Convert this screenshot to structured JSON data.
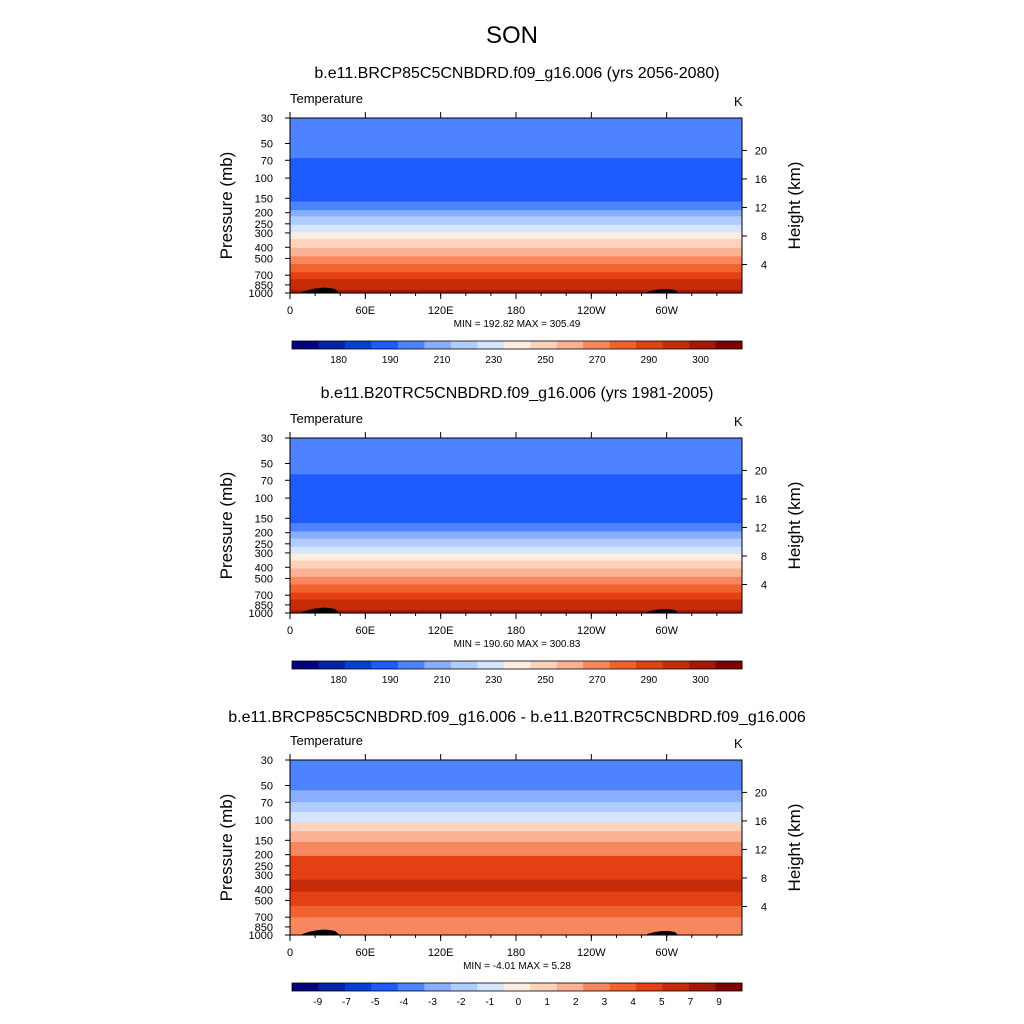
{
  "figure": {
    "title": "SON"
  },
  "colormaps": {
    "abs": [
      "#02007f",
      "#0023a8",
      "#0043d4",
      "#1e5bff",
      "#4e83ff",
      "#89aefd",
      "#b1ccff",
      "#d3e5ff",
      "#feeee1",
      "#fed2bb",
      "#fbb194",
      "#f6875f",
      "#f1632e",
      "#e34114",
      "#c62b0a",
      "#a41709",
      "#7f0000"
    ],
    "diff": [
      "#02007f",
      "#0023a8",
      "#0043d4",
      "#1e5bff",
      "#4e83ff",
      "#89aefd",
      "#b1ccff",
      "#d3e5ff",
      "#feeee1",
      "#fed2bb",
      "#fbb194",
      "#f6875f",
      "#f1632e",
      "#e34114",
      "#c62b0a",
      "#a41709",
      "#7f0000"
    ]
  },
  "chart_data": [
    {
      "type": "heatmap",
      "title": "b.e11.BRCP85C5CNBDRD.f09_g16.006 (yrs 2056-2080)",
      "left_label": "Temperature",
      "units": "K",
      "ylabel": "Pressure (mb)",
      "y2label": "Height (km)",
      "yticks": [
        "30",
        "50",
        "70",
        "100",
        "150",
        "200",
        "250",
        "300",
        "400",
        "500",
        "700",
        "850",
        "1000"
      ],
      "ytick_values": [
        30,
        50,
        70,
        100,
        150,
        200,
        250,
        300,
        400,
        500,
        700,
        850,
        1000
      ],
      "y2ticks": [
        "20",
        "16",
        "12",
        "8",
        "4"
      ],
      "y2tick_values": [
        20,
        16,
        12,
        8,
        4
      ],
      "xticks": [
        "0",
        "60E",
        "120E",
        "180",
        "120W",
        "60W"
      ],
      "xtick_values": [
        0,
        60,
        120,
        180,
        240,
        300
      ],
      "xlim": [
        0,
        360
      ],
      "ylim": [
        1000,
        30
      ],
      "stats": "MIN = 192.82  MAX = 305.49",
      "colorbar_labels": [
        "180",
        "190",
        "210",
        "230",
        "250",
        "270",
        "290",
        "300"
      ],
      "levels": [
        {
          "p": 30,
          "value": 205
        },
        {
          "p": 50,
          "value": 205
        },
        {
          "p": 70,
          "value": 198
        },
        {
          "p": 100,
          "value": 198
        },
        {
          "p": 150,
          "value": 208
        },
        {
          "p": 200,
          "value": 222
        },
        {
          "p": 250,
          "value": 232
        },
        {
          "p": 300,
          "value": 242
        },
        {
          "p": 400,
          "value": 255
        },
        {
          "p": 500,
          "value": 265
        },
        {
          "p": 700,
          "value": 280
        },
        {
          "p": 850,
          "value": 290
        },
        {
          "p": 1000,
          "value": 298
        }
      ],
      "colorband_boundaries": [
        30,
        45,
        67,
        130,
        160,
        190,
        215,
        255,
        295,
        340,
        405,
        480,
        560,
        660,
        760,
        870,
        940,
        1000
      ],
      "colorband_indices": [
        4,
        4,
        3,
        3,
        4,
        5,
        6,
        7,
        8,
        9,
        10,
        11,
        12,
        13,
        14,
        14,
        15
      ]
    },
    {
      "type": "heatmap",
      "title": "b.e11.B20TRC5CNBDRD.f09_g16.006 (yrs 1981-2005)",
      "left_label": "Temperature",
      "units": "K",
      "ylabel": "Pressure (mb)",
      "y2label": "Height (km)",
      "yticks": [
        "30",
        "50",
        "70",
        "100",
        "150",
        "200",
        "250",
        "300",
        "400",
        "500",
        "700",
        "850",
        "1000"
      ],
      "ytick_values": [
        30,
        50,
        70,
        100,
        150,
        200,
        250,
        300,
        400,
        500,
        700,
        850,
        1000
      ],
      "y2ticks": [
        "20",
        "16",
        "12",
        "8",
        "4"
      ],
      "y2tick_values": [
        20,
        16,
        12,
        8,
        4
      ],
      "xticks": [
        "0",
        "60E",
        "120E",
        "180",
        "120W",
        "60W"
      ],
      "xtick_values": [
        0,
        60,
        120,
        180,
        240,
        300
      ],
      "xlim": [
        0,
        360
      ],
      "ylim": [
        1000,
        30
      ],
      "stats": "MIN = 190.60  MAX = 300.83",
      "colorbar_labels": [
        "180",
        "190",
        "210",
        "230",
        "250",
        "270",
        "290",
        "300"
      ],
      "colorband_boundaries": [
        30,
        40,
        62,
        140,
        165,
        195,
        225,
        265,
        305,
        350,
        410,
        485,
        565,
        665,
        765,
        875,
        945,
        1000
      ],
      "colorband_indices": [
        4,
        4,
        3,
        3,
        4,
        5,
        6,
        7,
        8,
        9,
        10,
        11,
        12,
        13,
        14,
        14,
        15
      ]
    },
    {
      "type": "heatmap",
      "title": "b.e11.BRCP85C5CNBDRD.f09_g16.006 - b.e11.B20TRC5CNBDRD.f09_g16.006",
      "left_label": "Temperature",
      "units": "K",
      "ylabel": "Pressure (mb)",
      "y2label": "Height (km)",
      "yticks": [
        "30",
        "50",
        "70",
        "100",
        "150",
        "200",
        "250",
        "300",
        "400",
        "500",
        "700",
        "850",
        "1000"
      ],
      "ytick_values": [
        30,
        50,
        70,
        100,
        150,
        200,
        250,
        300,
        400,
        500,
        700,
        850,
        1000
      ],
      "y2ticks": [
        "20",
        "16",
        "12",
        "8",
        "4"
      ],
      "y2tick_values": [
        20,
        16,
        12,
        8,
        4
      ],
      "xticks": [
        "0",
        "60E",
        "120E",
        "180",
        "120W",
        "60W"
      ],
      "xtick_values": [
        0,
        60,
        120,
        180,
        240,
        300
      ],
      "xlim": [
        0,
        360
      ],
      "ylim": [
        1000,
        30
      ],
      "stats": "MIN = -4.01  MAX =  5.28",
      "colorbar_labels": [
        "-9",
        "-7",
        "-5",
        "-4",
        "-3",
        "-2",
        "-1",
        "0",
        "1",
        "2",
        "3",
        "4",
        "5",
        "7",
        "9"
      ],
      "colorband_boundaries": [
        30,
        42,
        55,
        70,
        85,
        105,
        125,
        155,
        205,
        330,
        420,
        560,
        700,
        1000
      ],
      "colorband_indices": [
        4,
        4,
        5,
        6,
        7,
        9,
        10,
        11,
        13,
        14,
        13,
        12,
        11
      ]
    }
  ]
}
